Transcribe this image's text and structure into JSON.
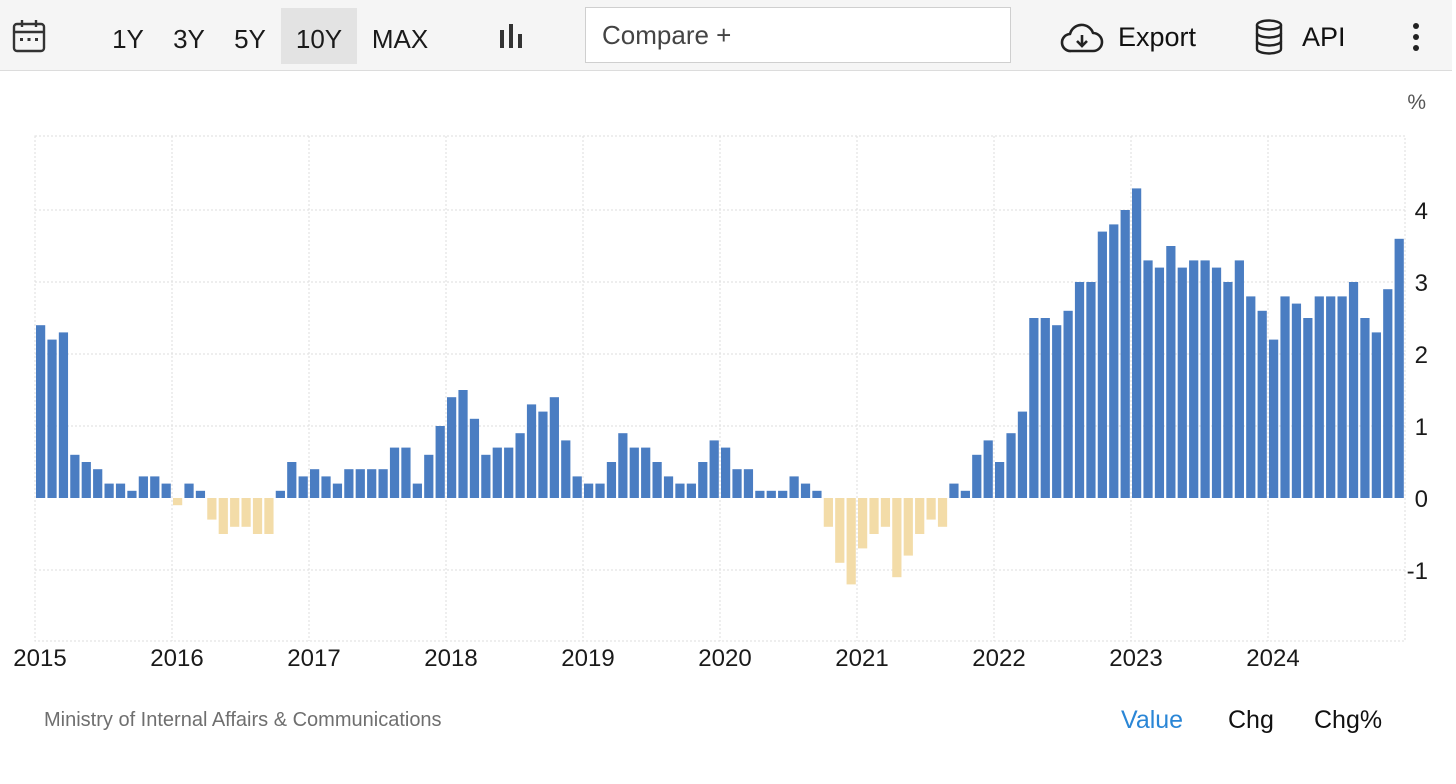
{
  "toolbar": {
    "ranges": [
      "1Y",
      "3Y",
      "5Y",
      "10Y",
      "MAX"
    ],
    "active_range": "10Y",
    "compare_placeholder": "Compare +",
    "export_label": "Export",
    "api_label": "API",
    "icons": {
      "calendar": "calendar-icon",
      "chart_type": "bar-chart-icon",
      "export": "cloud-download-icon",
      "api": "database-icon",
      "menu": "more-vertical-icon"
    }
  },
  "chart_data": {
    "type": "bar",
    "unit_label": "%",
    "ylim": [
      -2,
      5
    ],
    "yticks": [
      -1,
      0,
      1,
      2,
      3,
      4
    ],
    "xlim": [
      2015,
      2025
    ],
    "xticks": [
      "2015",
      "2016",
      "2017",
      "2018",
      "2019",
      "2020",
      "2021",
      "2022",
      "2023",
      "2024"
    ],
    "grid": true,
    "start": "2015-01",
    "frequency": "monthly",
    "colors": {
      "positive": "#4a7dc2",
      "negative": "#f3dca8"
    },
    "values": [
      2.4,
      2.2,
      2.3,
      0.6,
      0.5,
      0.4,
      0.2,
      0.2,
      0.1,
      0.3,
      0.3,
      0.2,
      -0.1,
      0.2,
      0.1,
      -0.3,
      -0.5,
      -0.4,
      -0.4,
      -0.5,
      -0.5,
      0.1,
      0.5,
      0.3,
      0.4,
      0.3,
      0.2,
      0.4,
      0.4,
      0.4,
      0.4,
      0.7,
      0.7,
      0.2,
      0.6,
      1.0,
      1.4,
      1.5,
      1.1,
      0.6,
      0.7,
      0.7,
      0.9,
      1.3,
      1.2,
      1.4,
      0.8,
      0.3,
      0.2,
      0.2,
      0.5,
      0.9,
      0.7,
      0.7,
      0.5,
      0.3,
      0.2,
      0.2,
      0.5,
      0.8,
      0.7,
      0.4,
      0.4,
      0.1,
      0.1,
      0.1,
      0.3,
      0.2,
      0.1,
      -0.4,
      -0.9,
      -1.2,
      -0.7,
      -0.5,
      -0.4,
      -1.1,
      -0.8,
      -0.5,
      -0.3,
      -0.4,
      0.2,
      0.1,
      0.6,
      0.8,
      0.5,
      0.9,
      1.2,
      2.5,
      2.5,
      2.4,
      2.6,
      3.0,
      3.0,
      3.7,
      3.8,
      4.0,
      4.3,
      3.3,
      3.2,
      3.5,
      3.2,
      3.3,
      3.3,
      3.2,
      3.0,
      3.3,
      2.8,
      2.6,
      2.2,
      2.8,
      2.7,
      2.5,
      2.8,
      2.8,
      2.8,
      3.0,
      2.5,
      2.3,
      2.9,
      3.6
    ]
  },
  "footer": {
    "source": "Ministry of Internal Affairs & Communications",
    "view_tabs": [
      "Value",
      "Chg",
      "Chg%"
    ],
    "active_tab": "Value"
  }
}
